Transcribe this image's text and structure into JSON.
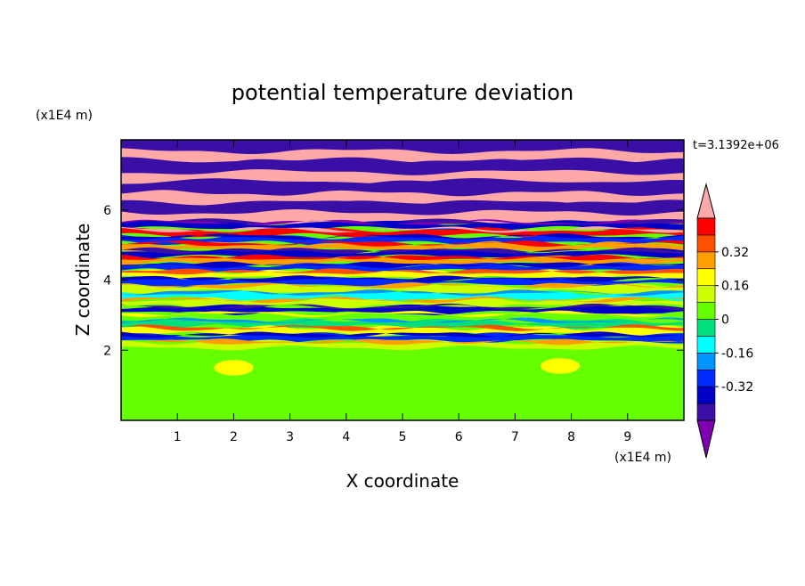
{
  "chart_data": {
    "type": "heatmap",
    "title": "potential temperature deviation",
    "xlabel": "X coordinate",
    "ylabel": "Z coordinate",
    "x_unit": "(x1E4 m)",
    "y_unit": "(x1E4 m)",
    "time_label": "t=3.1392e+06",
    "xlim": [
      0,
      10
    ],
    "ylim": [
      0,
      8
    ],
    "x_ticks": [
      1,
      2,
      3,
      4,
      5,
      6,
      7,
      8,
      9
    ],
    "y_ticks": [
      2,
      4,
      6
    ],
    "grid": false,
    "colorbar": {
      "position": "right",
      "levels": [
        -0.48,
        -0.4,
        -0.32,
        -0.24,
        -0.16,
        -0.08,
        0,
        0.08,
        0.16,
        0.24,
        0.32,
        0.4,
        0.48
      ],
      "colors": [
        "#7f00b0",
        "#3a0fa6",
        "#0000c8",
        "#0028ff",
        "#0096ff",
        "#00ffff",
        "#00e07a",
        "#66ff00",
        "#ccff00",
        "#ffff00",
        "#ffa000",
        "#ff5000",
        "#ff0000",
        "#ffa8a8"
      ],
      "labels": [
        "0.32",
        "0.16",
        "0",
        "-0.16",
        "-0.32"
      ],
      "label_values": [
        0.32,
        0.16,
        0,
        -0.16,
        -0.32
      ],
      "extend": "both"
    },
    "description_bands": [
      {
        "z0": 0.0,
        "z1": 2.1,
        "value": 0.02,
        "note": "lower layer, mostly slightly positive/zero"
      },
      {
        "z0": 2.1,
        "z1": 5.6,
        "value_range": [
          -0.48,
          0.48
        ],
        "note": "mixed layer, strongly banded"
      },
      {
        "z0": 5.6,
        "z1": 8.0,
        "value_range": [
          -0.48,
          0.48
        ],
        "note": "upper layer, alternating pink/purple bands"
      }
    ],
    "bands_upper": [
      {
        "z": 7.85,
        "v": -0.45
      },
      {
        "z": 7.55,
        "v": 0.48
      },
      {
        "z": 7.25,
        "v": -0.45
      },
      {
        "z": 6.95,
        "v": 0.48
      },
      {
        "z": 6.65,
        "v": -0.45
      },
      {
        "z": 6.35,
        "v": 0.48
      },
      {
        "z": 6.05,
        "v": -0.45
      },
      {
        "z": 5.8,
        "v": 0.48
      }
    ],
    "bands_middle": [
      {
        "z": 5.55,
        "v": -0.4
      },
      {
        "z": 5.35,
        "v": 0.4
      },
      {
        "z": 5.15,
        "v": -0.3
      },
      {
        "z": 4.95,
        "v": 0.3
      },
      {
        "z": 4.75,
        "v": -0.35
      },
      {
        "z": 4.55,
        "v": 0.25
      },
      {
        "z": 4.35,
        "v": -0.3
      },
      {
        "z": 4.15,
        "v": 0.2
      },
      {
        "z": 3.95,
        "v": -0.25
      },
      {
        "z": 3.75,
        "v": 0.15
      },
      {
        "z": 3.55,
        "v": -0.1
      },
      {
        "z": 3.35,
        "v": 0.1
      },
      {
        "z": 3.15,
        "v": -0.35
      },
      {
        "z": 2.95,
        "v": 0.05
      },
      {
        "z": 2.75,
        "v": -0.08
      },
      {
        "z": 2.55,
        "v": 0.2
      },
      {
        "z": 2.35,
        "v": -0.3
      },
      {
        "z": 2.15,
        "v": 0.1
      }
    ],
    "blobs_lower": [
      {
        "x": 2.0,
        "z": 1.5,
        "v": 0.22
      },
      {
        "x": 7.8,
        "z": 1.55,
        "v": 0.22
      },
      {
        "x": 1.2,
        "z": 1.0,
        "v": 0.06
      },
      {
        "x": 3.0,
        "z": 1.2,
        "v": 0.06
      },
      {
        "x": 5.2,
        "z": 0.8,
        "v": 0.06
      },
      {
        "x": 6.3,
        "z": 1.1,
        "v": 0.06
      },
      {
        "x": 8.5,
        "z": 0.7,
        "v": 0.06
      },
      {
        "x": 4.2,
        "z": 0.5,
        "v": 0.06
      },
      {
        "x": 9.4,
        "z": 1.3,
        "v": 0.06
      },
      {
        "x": 0.6,
        "z": 0.4,
        "v": 0.06
      }
    ]
  }
}
